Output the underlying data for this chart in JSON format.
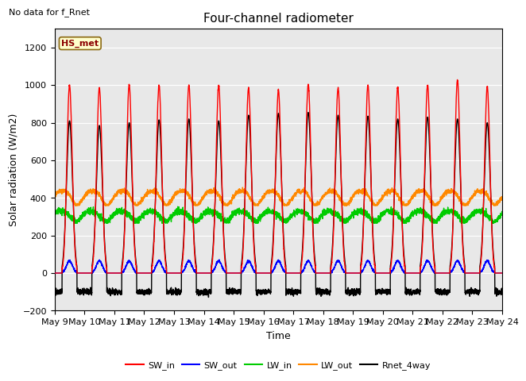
{
  "title": "Four-channel radiometer",
  "top_left_text": "No data for f_Rnet",
  "ylabel": "Solar radiation (W/m2)",
  "xlabel": "Time",
  "ylim": [
    -200,
    1300
  ],
  "yticks": [
    -200,
    0,
    200,
    400,
    600,
    800,
    1000,
    1200
  ],
  "legend_label": "HS_met",
  "x_start_day": 9,
  "x_end_day": 24,
  "x_tick_days": [
    9,
    10,
    11,
    12,
    13,
    14,
    15,
    16,
    17,
    18,
    19,
    20,
    21,
    22,
    23,
    24
  ],
  "series": {
    "SW_in": {
      "color": "#ff0000",
      "lw": 1.0
    },
    "SW_out": {
      "color": "#0000ff",
      "lw": 1.0
    },
    "LW_in": {
      "color": "#00cc00",
      "lw": 1.0
    },
    "LW_out": {
      "color": "#ff8800",
      "lw": 1.0
    },
    "Rnet_4way": {
      "color": "#000000",
      "lw": 1.0
    }
  },
  "bg_color": "#e8e8e8",
  "grid_color": "#ffffff",
  "title_fontsize": 11,
  "label_fontsize": 9,
  "tick_fontsize": 8,
  "peak_heights_SW": [
    1000,
    985,
    1000,
    1000,
    1000,
    1000,
    985,
    975,
    1005,
    985,
    1000,
    990,
    1000,
    1025,
    990
  ],
  "peak_heights_Rnet": [
    810,
    785,
    800,
    815,
    820,
    810,
    840,
    850,
    855,
    840,
    835,
    820,
    830,
    820,
    800
  ]
}
